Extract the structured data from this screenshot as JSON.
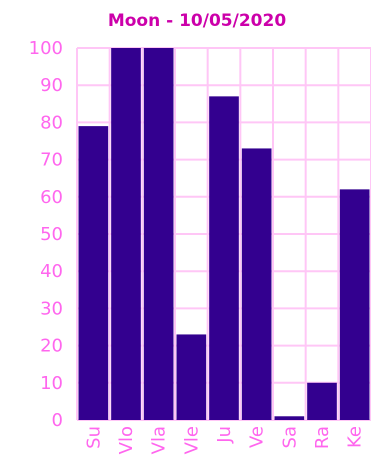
{
  "colors": {
    "title": "#cc00aa",
    "axis_text": "#ff66ee",
    "grid": "#ffc6f6",
    "bar_fill": "#33008f",
    "bar_stroke": "#ffffff",
    "background": "#ffffff"
  },
  "chart_data": {
    "type": "bar",
    "title": "Moon - 10/05/2020",
    "xlabel": "",
    "ylabel": "",
    "categories": [
      "Su",
      "Vlo",
      "Vla",
      "Vle",
      "Ju",
      "Ve",
      "Sa",
      "Ra",
      "Ke"
    ],
    "values": [
      79,
      101,
      101,
      23,
      87,
      73,
      1,
      10,
      62
    ],
    "ylim": [
      0,
      100
    ],
    "yticks": [
      0,
      10,
      20,
      30,
      40,
      50,
      60,
      70,
      80,
      90,
      100
    ],
    "grid": true,
    "legend": "none"
  }
}
